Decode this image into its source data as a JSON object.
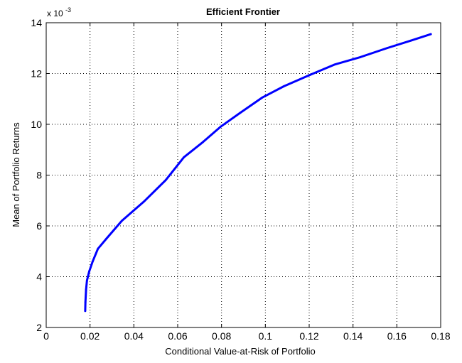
{
  "chart_data": {
    "type": "line",
    "title": "Efficient Frontier",
    "xlabel": "Conditional Value-at-Risk of Portfolio",
    "ylabel": "Mean of Portfolio Returns",
    "y_multiplier": {
      "base": "x 10",
      "exponent": "-3"
    },
    "xlim": [
      0,
      0.18
    ],
    "ylim": [
      2,
      14
    ],
    "x_ticks": [
      0,
      0.02,
      0.04,
      0.06,
      0.08,
      0.1,
      0.12,
      0.14,
      0.16,
      0.18
    ],
    "x_tick_labels": [
      "0",
      "0.02",
      "0.04",
      "0.06",
      "0.08",
      "0.1",
      "0.12",
      "0.14",
      "0.16",
      "0.18"
    ],
    "y_ticks": [
      2,
      4,
      6,
      8,
      10,
      12,
      14
    ],
    "y_tick_labels": [
      "2",
      "4",
      "6",
      "8",
      "10",
      "12",
      "14"
    ],
    "grid": true,
    "line_color": "#0000ff",
    "series": [
      {
        "x": [
          0.0178,
          0.0179,
          0.0182,
          0.0186,
          0.0196,
          0.0212,
          0.0236,
          0.0275,
          0.0345,
          0.0445,
          0.0545,
          0.0628,
          0.0715,
          0.0795,
          0.0885,
          0.0985,
          0.1085,
          0.1205,
          0.1315,
          0.1435,
          0.1555,
          0.1665,
          0.1755
        ],
        "y": [
          2.65,
          3.0,
          3.5,
          3.85,
          4.2,
          4.6,
          5.1,
          5.5,
          6.2,
          6.95,
          7.8,
          8.7,
          9.3,
          9.9,
          10.45,
          11.05,
          11.5,
          11.95,
          12.35,
          12.65,
          13.0,
          13.3,
          13.55
        ]
      }
    ]
  }
}
